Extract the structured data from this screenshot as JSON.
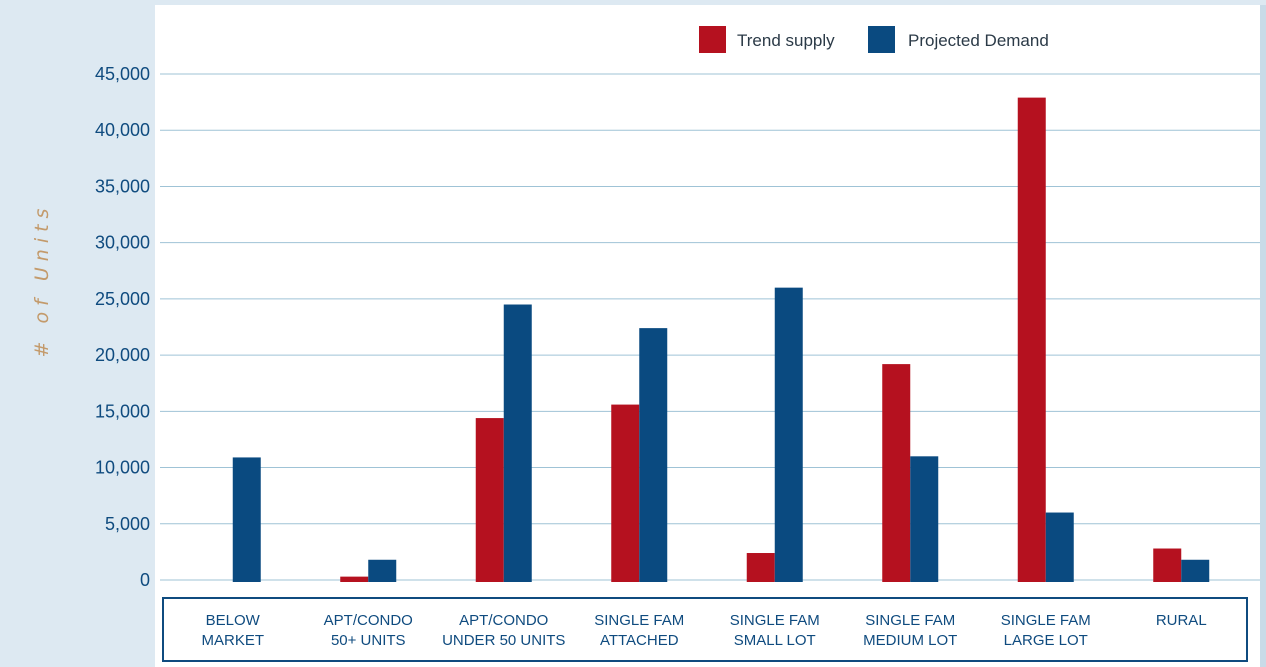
{
  "chart_data": {
    "type": "bar",
    "ylabel": "# of Units",
    "ylim": [
      0,
      45000
    ],
    "yticks": [
      0,
      5000,
      10000,
      15000,
      20000,
      25000,
      30000,
      35000,
      40000,
      45000
    ],
    "ytick_labels": [
      "0",
      "5,000",
      "10,000",
      "15,000",
      "20,000",
      "25,000",
      "30,000",
      "35,000",
      "40,000",
      "45,000"
    ],
    "grid": true,
    "legend_position": "top-right",
    "categories": [
      [
        "BELOW",
        "MARKET"
      ],
      [
        "APT/CONDO",
        "50+ UNITS"
      ],
      [
        "APT/CONDO",
        "UNDER 50 UNITS"
      ],
      [
        "SINGLE FAM",
        "ATTACHED"
      ],
      [
        "SINGLE FAM",
        "SMALL LOT"
      ],
      [
        "SINGLE FAM",
        "MEDIUM LOT"
      ],
      [
        "SINGLE FAM",
        "LARGE LOT"
      ],
      [
        "RURAL"
      ]
    ],
    "series": [
      {
        "name": "Trend supply",
        "color": "#b5111f",
        "values": [
          0,
          300,
          14400,
          15600,
          2400,
          19200,
          42900,
          2800
        ]
      },
      {
        "name": "Projected Demand",
        "color": "#0a4a80",
        "values": [
          10900,
          1800,
          24500,
          22400,
          26000,
          11000,
          6000,
          1800
        ]
      }
    ],
    "colors": {
      "grid": "#9fc3d6",
      "axis_text": "#0f4b7f",
      "axis_box": "#0f4b7f"
    }
  }
}
